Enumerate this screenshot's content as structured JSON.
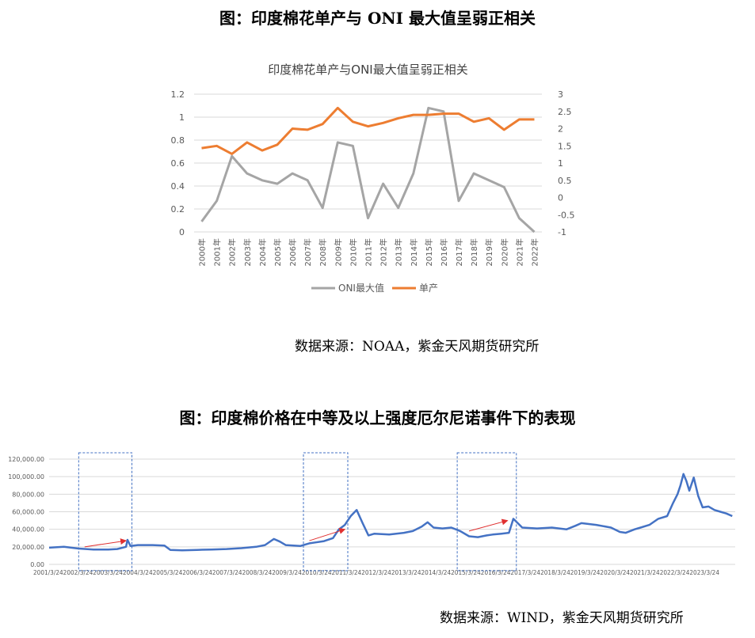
{
  "figures": [
    {
      "heading": "图：印度棉花单产与 ONI 最大值呈弱正相关",
      "source": "数据来源：NOAA，紫金天风期货研究所"
    },
    {
      "heading": "图：印度棉价格在中等及以上强度厄尔尼诺事件下的表现",
      "source": "数据来源：WIND，紫金天风期货研究所"
    }
  ],
  "chart_data": [
    {
      "type": "line",
      "title": "印度棉花单产与ONI最大值呈弱正相关",
      "categories": [
        "2000年",
        "2001年",
        "2002年",
        "2003年",
        "2004年",
        "2005年",
        "2006年",
        "2007年",
        "2008年",
        "2009年",
        "2010年",
        "2011年",
        "2012年",
        "2013年",
        "2014年",
        "2015年",
        "2016年",
        "2017年",
        "2018年",
        "2019年",
        "2020年",
        "2021年",
        "2022年"
      ],
      "y_left": {
        "ylim": [
          0,
          1.2
        ],
        "ticks": [
          "0",
          "0.2",
          "0.4",
          "0.6",
          "0.8",
          "1",
          "1.2"
        ]
      },
      "y_right": {
        "ylim": [
          -1,
          3
        ],
        "ticks": [
          "-1",
          "-0.5",
          "0",
          "0.5",
          "1",
          "1.5",
          "2",
          "2.5",
          "3"
        ]
      },
      "series": [
        {
          "name": "ONI最大值",
          "axis": "right",
          "color": "#a5a5a5",
          "values": [
            -0.7,
            -0.1,
            1.2,
            0.7,
            0.5,
            0.4,
            0.7,
            0.5,
            -0.3,
            1.6,
            1.5,
            -0.6,
            0.4,
            -0.3,
            0.7,
            2.6,
            2.5,
            -0.1,
            0.7,
            0.5,
            0.3,
            -0.6,
            -1.0
          ]
        },
        {
          "name": "单产",
          "axis": "left",
          "color": "#ed7d31",
          "values": [
            0.73,
            0.75,
            0.68,
            0.78,
            0.71,
            0.76,
            0.9,
            0.89,
            0.94,
            1.08,
            0.96,
            0.92,
            0.95,
            0.99,
            1.02,
            1.02,
            1.03,
            1.03,
            0.96,
            0.99,
            0.89,
            0.98,
            0.98
          ]
        }
      ],
      "legend": "bottom",
      "grid": true
    },
    {
      "type": "line",
      "x_tick_labels": [
        "2001/3/24",
        "2002/3/24",
        "2003/3/24",
        "2004/3/24",
        "2005/3/24",
        "2006/3/24",
        "2007/3/24",
        "2008/3/24",
        "2009/3/24",
        "2010/3/24",
        "2011/3/24",
        "2012/3/24",
        "2013/3/24",
        "2014/3/24",
        "2015/3/24",
        "2016/3/24",
        "2017/3/24",
        "2018/3/24",
        "2019/3/24",
        "2020/3/24",
        "2021/3/24",
        "2022/3/24",
        "2023/3/24"
      ],
      "y_ticks": [
        "0.00",
        "20,000.00",
        "40,000.00",
        "60,000.00",
        "80,000.00",
        "100,000.00",
        "120,000.00"
      ],
      "ylim": [
        0,
        120000
      ],
      "xlim": [
        2001.0,
        2024.2
      ],
      "grid": true,
      "color": "#4472c4",
      "x": [
        2001.0,
        2001.5,
        2002.0,
        2002.5,
        2003.0,
        2003.3,
        2003.6,
        2003.65,
        2003.75,
        2004.0,
        2004.5,
        2004.9,
        2005.1,
        2005.5,
        2006.0,
        2006.5,
        2007.0,
        2007.5,
        2008.0,
        2008.3,
        2008.6,
        2008.8,
        2009.0,
        2009.5,
        2009.8,
        2010.0,
        2010.3,
        2010.6,
        2010.8,
        2011.0,
        2011.2,
        2011.4,
        2011.6,
        2011.8,
        2012.0,
        2012.5,
        2013.0,
        2013.3,
        2013.6,
        2013.8,
        2014.0,
        2014.3,
        2014.6,
        2014.9,
        2015.2,
        2015.5,
        2015.8,
        2016.0,
        2016.3,
        2016.55,
        2016.7,
        2017.0,
        2017.5,
        2018.0,
        2018.5,
        2018.8,
        2019.0,
        2019.5,
        2020.0,
        2020.3,
        2020.5,
        2020.8,
        2021.0,
        2021.3,
        2021.6,
        2021.9,
        2022.1,
        2022.25,
        2022.35,
        2022.45,
        2022.55,
        2022.65,
        2022.8,
        2022.95,
        2023.1,
        2023.3,
        2023.5,
        2023.7,
        2023.9,
        2024.1
      ],
      "y": [
        19000,
        20000,
        18000,
        17000,
        17000,
        17500,
        20000,
        28000,
        21000,
        22000,
        22000,
        21500,
        16500,
        16000,
        16500,
        17000,
        17500,
        18500,
        20000,
        22000,
        29000,
        26000,
        22000,
        21000,
        24000,
        25000,
        26500,
        30000,
        40000,
        45000,
        55000,
        62000,
        47000,
        33000,
        35000,
        34000,
        36000,
        38000,
        43000,
        48000,
        42000,
        41000,
        42000,
        38000,
        32000,
        31000,
        33000,
        34000,
        35000,
        36000,
        52000,
        42000,
        41000,
        42000,
        40000,
        44000,
        47000,
        45000,
        42000,
        37000,
        36000,
        40000,
        42000,
        45000,
        52000,
        55000,
        70000,
        80000,
        90000,
        103000,
        95000,
        84000,
        99000,
        78000,
        65000,
        66000,
        62000,
        60000,
        58000,
        55000
      ],
      "highlight_boxes": [
        {
          "x_start": 2002.0,
          "x_end": 2003.8
        },
        {
          "x_start": 2009.6,
          "x_end": 2011.1
        },
        {
          "x_start": 2014.8,
          "x_end": 2016.8
        }
      ],
      "trend_arrows": [
        {
          "x_start": 2002.2,
          "y_start": 20000,
          "x_end": 2003.6,
          "y_end": 27000
        },
        {
          "x_start": 2009.8,
          "y_start": 27000,
          "x_end": 2011.0,
          "y_end": 40000
        },
        {
          "x_start": 2015.2,
          "y_start": 38000,
          "x_end": 2016.5,
          "y_end": 50000
        }
      ],
      "arrow_color": "#e03030"
    }
  ]
}
